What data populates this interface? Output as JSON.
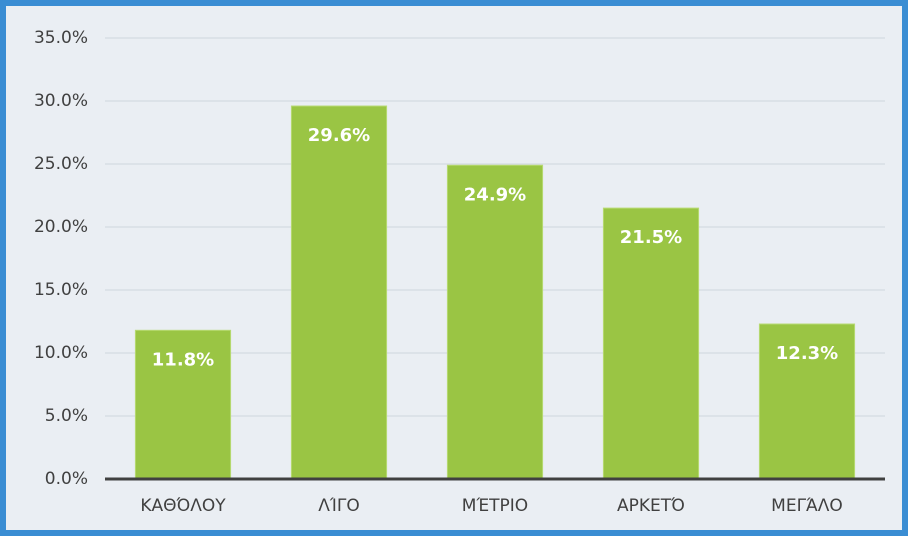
{
  "chart_data": {
    "type": "bar",
    "categories": [
      "ΚΑΘΌΛΟΥ",
      "ΛΊΓΟ",
      "ΜΈΤΡΙΟ",
      "ΑΡΚΕΤΌ",
      "ΜΕΓΆΛΟ"
    ],
    "values": [
      11.8,
      29.6,
      24.9,
      21.5,
      12.3
    ],
    "value_labels": [
      "11.8%",
      "29.6%",
      "24.9%",
      "21.5%",
      "12.3%"
    ],
    "color": "#9ac544",
    "ylim": [
      0,
      35
    ],
    "yticks": [
      {
        "value": 0,
        "label": "0.0%"
      },
      {
        "value": 5,
        "label": "5.0%"
      },
      {
        "value": 10,
        "label": "10.0%"
      },
      {
        "value": 15,
        "label": "15.0%"
      },
      {
        "value": 20,
        "label": "20.0%"
      },
      {
        "value": 25,
        "label": "25.0%"
      },
      {
        "value": 30,
        "label": "30.0%"
      },
      {
        "value": 35,
        "label": "35.0%"
      }
    ],
    "grid": true
  }
}
